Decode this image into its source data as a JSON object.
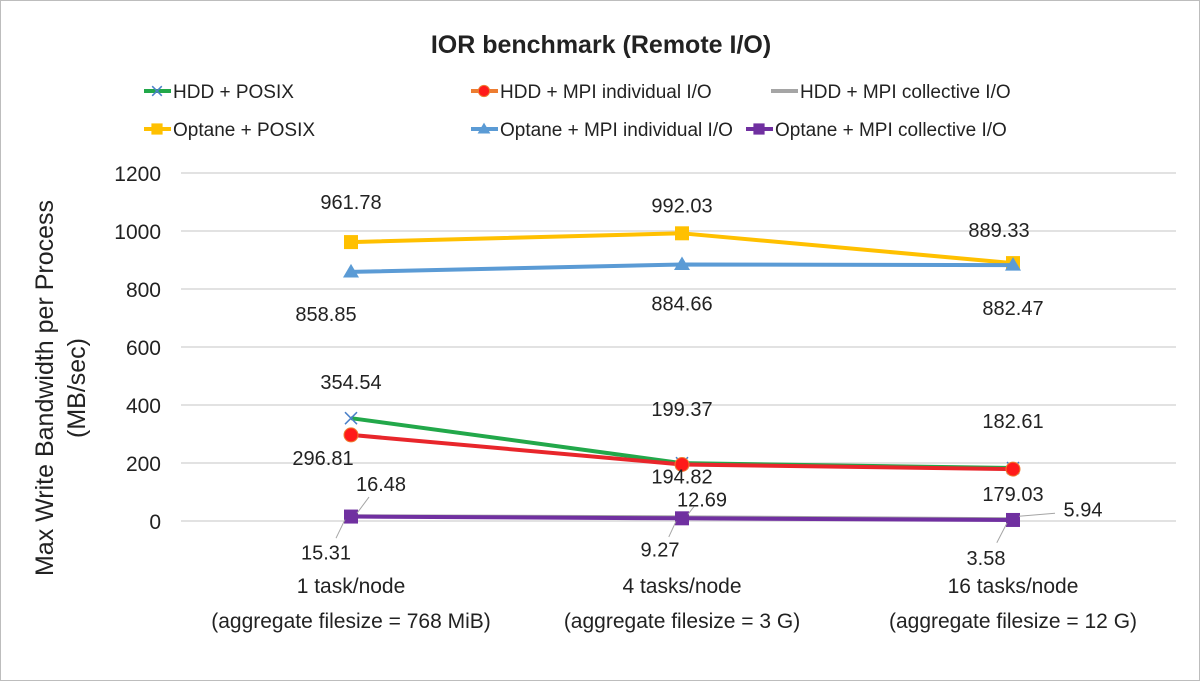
{
  "chart_data": {
    "type": "line",
    "title": "IOR benchmark (Remote I/O)",
    "xlabel": "",
    "ylabel": "Max Write Bandwidth per Process (MB/sec)",
    "ylabel_lines": [
      "Max Write Bandwidth per Process",
      "(MB/sec)"
    ],
    "ylim": [
      0,
      1200
    ],
    "yticks": [
      0,
      200,
      400,
      600,
      800,
      1000,
      1200
    ],
    "grid": true,
    "legend_position": "top",
    "categories": [
      [
        "1 task/node",
        "(aggregate filesize = 768 MiB)"
      ],
      [
        "4 tasks/node",
        "(aggregate filesize = 3 G)"
      ],
      [
        "16 tasks/node",
        "(aggregate filesize = 12 G)"
      ]
    ],
    "series": [
      {
        "name": "HDD + POSIX",
        "values": [
          354.54,
          199.37,
          182.61
        ],
        "color": "#22a84a",
        "marker": "x",
        "marker_color": "#4a7fc8"
      },
      {
        "name": "HDD + MPI individual I/O",
        "values": [
          296.81,
          194.82,
          179.03
        ],
        "color": "#e8262b",
        "legend_color": "#ed7d31",
        "marker": "circle",
        "marker_color": "#ff1a1a"
      },
      {
        "name": "HDD + MPI collective I/O",
        "values": [
          16.48,
          12.69,
          5.94
        ],
        "color": "#a5a5a5",
        "marker": "none"
      },
      {
        "name": "Optane + POSIX",
        "values": [
          961.78,
          992.03,
          889.33
        ],
        "color": "#ffc000",
        "marker": "square",
        "marker_color": "#ffc000"
      },
      {
        "name": "Optane + MPI individual I/O",
        "values": [
          858.85,
          884.66,
          882.47
        ],
        "color": "#5b9bd5",
        "marker": "triangle",
        "marker_color": "#5b9bd5"
      },
      {
        "name": "Optane + MPI collective I/O",
        "values": [
          15.31,
          9.27,
          3.58
        ],
        "color": "#7030a0",
        "marker": "square",
        "marker_color": "#7030a0"
      }
    ]
  }
}
